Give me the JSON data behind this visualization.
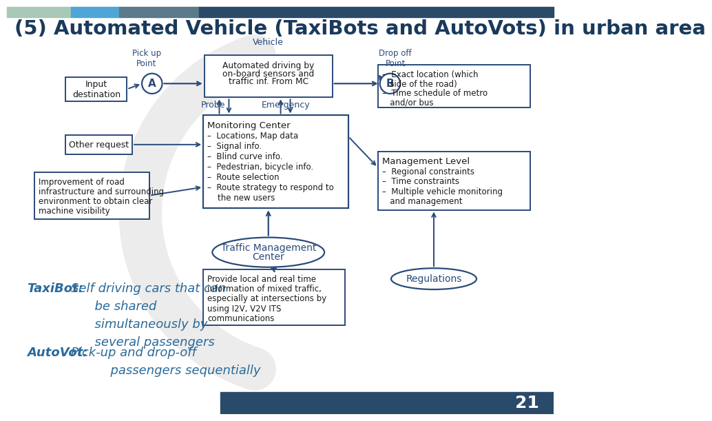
{
  "title": "(5) Automated Vehicle (TaxiBots and AutoVots) in urban area",
  "title_color": "#1a3a5c",
  "title_fontsize": 21,
  "bg_color": "#ffffff",
  "header_colors": [
    "#a8c8b8",
    "#4da6d6",
    "#5a7a8a",
    "#2a4a6a"
  ],
  "diagram_color": "#2a4a7a",
  "text_color": "#1a1a1a",
  "slide_number": "21",
  "bottom_bar_color": "#2a4a6a",
  "taxibot_autovot_color": "#2a6a9a",
  "arc_color": "#cccccc"
}
